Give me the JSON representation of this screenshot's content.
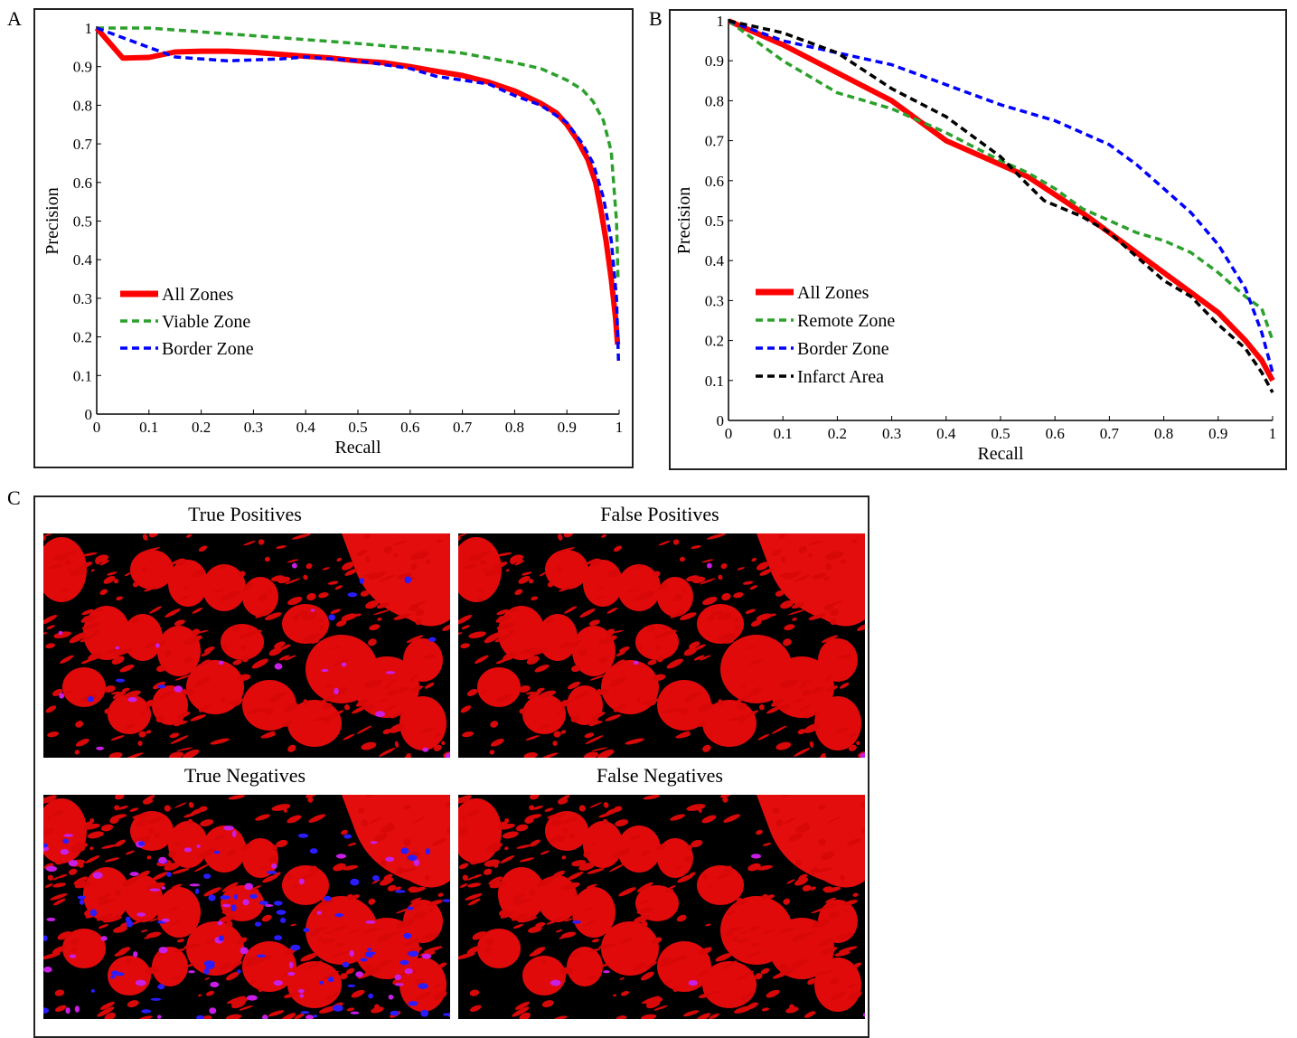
{
  "panels": {
    "a_label": "A",
    "b_label": "B",
    "c_label": "C"
  },
  "chart_data": [
    {
      "type": "line",
      "panel": "A",
      "xlabel": "Recall",
      "ylabel": "Precision",
      "xlim": [
        0,
        1
      ],
      "ylim": [
        0,
        1
      ],
      "xticks": [
        "0",
        "0.1",
        "0.2",
        "0.3",
        "0.4",
        "0.5",
        "0.6",
        "0.7",
        "0.8",
        "0.9",
        "1"
      ],
      "yticks": [
        "0",
        "0.1",
        "0.2",
        "0.3",
        "0.4",
        "0.5",
        "0.6",
        "0.7",
        "0.8",
        "0.9",
        "1"
      ],
      "legend_position": "bottom-left",
      "series": [
        {
          "name": "All Zones",
          "color": "#ff0000",
          "style": "solid",
          "points": [
            [
              0,
              1.0
            ],
            [
              0.05,
              0.922
            ],
            [
              0.1,
              0.924
            ],
            [
              0.15,
              0.938
            ],
            [
              0.2,
              0.94
            ],
            [
              0.25,
              0.94
            ],
            [
              0.3,
              0.937
            ],
            [
              0.35,
              0.932
            ],
            [
              0.4,
              0.927
            ],
            [
              0.45,
              0.922
            ],
            [
              0.5,
              0.915
            ],
            [
              0.55,
              0.91
            ],
            [
              0.6,
              0.9
            ],
            [
              0.65,
              0.888
            ],
            [
              0.7,
              0.877
            ],
            [
              0.75,
              0.86
            ],
            [
              0.8,
              0.837
            ],
            [
              0.85,
              0.805
            ],
            [
              0.88,
              0.78
            ],
            [
              0.9,
              0.75
            ],
            [
              0.92,
              0.71
            ],
            [
              0.94,
              0.66
            ],
            [
              0.955,
              0.6
            ],
            [
              0.965,
              0.53
            ],
            [
              0.975,
              0.45
            ],
            [
              0.985,
              0.35
            ],
            [
              0.993,
              0.25
            ],
            [
              0.997,
              0.18
            ]
          ]
        },
        {
          "name": "Viable Zone",
          "color": "#2ca02c",
          "style": "dashed",
          "points": [
            [
              0,
              1.0
            ],
            [
              0.1,
              1.0
            ],
            [
              0.2,
              0.99
            ],
            [
              0.3,
              0.98
            ],
            [
              0.4,
              0.97
            ],
            [
              0.5,
              0.96
            ],
            [
              0.6,
              0.948
            ],
            [
              0.7,
              0.935
            ],
            [
              0.8,
              0.91
            ],
            [
              0.85,
              0.895
            ],
            [
              0.9,
              0.865
            ],
            [
              0.93,
              0.84
            ],
            [
              0.95,
              0.81
            ],
            [
              0.97,
              0.76
            ],
            [
              0.985,
              0.68
            ],
            [
              0.995,
              0.5
            ],
            [
              0.998,
              0.35
            ]
          ]
        },
        {
          "name": "Border Zone",
          "color": "#0000ff",
          "style": "dashed",
          "points": [
            [
              0,
              1.0
            ],
            [
              0.1,
              0.95
            ],
            [
              0.15,
              0.925
            ],
            [
              0.25,
              0.915
            ],
            [
              0.35,
              0.92
            ],
            [
              0.4,
              0.925
            ],
            [
              0.5,
              0.915
            ],
            [
              0.6,
              0.895
            ],
            [
              0.65,
              0.875
            ],
            [
              0.7,
              0.865
            ],
            [
              0.75,
              0.855
            ],
            [
              0.8,
              0.825
            ],
            [
              0.85,
              0.8
            ],
            [
              0.9,
              0.755
            ],
            [
              0.93,
              0.7
            ],
            [
              0.95,
              0.65
            ],
            [
              0.97,
              0.56
            ],
            [
              0.985,
              0.45
            ],
            [
              0.995,
              0.3
            ],
            [
              0.999,
              0.13
            ]
          ]
        }
      ]
    },
    {
      "type": "line",
      "panel": "B",
      "xlabel": "Recall",
      "ylabel": "Precision",
      "xlim": [
        0,
        1
      ],
      "ylim": [
        0,
        1
      ],
      "xticks": [
        "0",
        "0.1",
        "0.2",
        "0.3",
        "0.4",
        "0.5",
        "0.6",
        "0.7",
        "0.8",
        "0.9",
        "1"
      ],
      "yticks": [
        "0",
        "0.1",
        "0.2",
        "0.3",
        "0.4",
        "0.5",
        "0.6",
        "0.7",
        "0.8",
        "0.9",
        "1"
      ],
      "legend_position": "bottom-left",
      "series": [
        {
          "name": "All Zones",
          "color": "#ff0000",
          "style": "solid",
          "points": [
            [
              0,
              1.0
            ],
            [
              0.1,
              0.94
            ],
            [
              0.2,
              0.87
            ],
            [
              0.3,
              0.8
            ],
            [
              0.4,
              0.7
            ],
            [
              0.5,
              0.64
            ],
            [
              0.55,
              0.61
            ],
            [
              0.6,
              0.565
            ],
            [
              0.65,
              0.52
            ],
            [
              0.7,
              0.47
            ],
            [
              0.75,
              0.42
            ],
            [
              0.8,
              0.37
            ],
            [
              0.85,
              0.32
            ],
            [
              0.9,
              0.27
            ],
            [
              0.95,
              0.2
            ],
            [
              0.98,
              0.15
            ],
            [
              1.0,
              0.1
            ]
          ]
        },
        {
          "name": "Remote Zone",
          "color": "#2ca02c",
          "style": "dashed",
          "points": [
            [
              0,
              1.0
            ],
            [
              0.1,
              0.9
            ],
            [
              0.2,
              0.82
            ],
            [
              0.3,
              0.78
            ],
            [
              0.4,
              0.72
            ],
            [
              0.5,
              0.65
            ],
            [
              0.55,
              0.62
            ],
            [
              0.6,
              0.58
            ],
            [
              0.65,
              0.53
            ],
            [
              0.7,
              0.5
            ],
            [
              0.75,
              0.47
            ],
            [
              0.8,
              0.45
            ],
            [
              0.85,
              0.42
            ],
            [
              0.9,
              0.37
            ],
            [
              0.95,
              0.31
            ],
            [
              0.98,
              0.28
            ],
            [
              1.0,
              0.2
            ]
          ]
        },
        {
          "name": "Border Zone",
          "color": "#0000ff",
          "style": "dashed",
          "points": [
            [
              0,
              1.0
            ],
            [
              0.1,
              0.95
            ],
            [
              0.2,
              0.92
            ],
            [
              0.3,
              0.89
            ],
            [
              0.4,
              0.84
            ],
            [
              0.5,
              0.79
            ],
            [
              0.6,
              0.75
            ],
            [
              0.7,
              0.69
            ],
            [
              0.75,
              0.64
            ],
            [
              0.8,
              0.58
            ],
            [
              0.85,
              0.52
            ],
            [
              0.9,
              0.44
            ],
            [
              0.95,
              0.33
            ],
            [
              0.98,
              0.22
            ],
            [
              1.0,
              0.12
            ]
          ]
        },
        {
          "name": "Infarct Area",
          "color": "#000000",
          "style": "dashed",
          "points": [
            [
              0,
              1.0
            ],
            [
              0.1,
              0.97
            ],
            [
              0.2,
              0.92
            ],
            [
              0.3,
              0.83
            ],
            [
              0.4,
              0.76
            ],
            [
              0.5,
              0.66
            ],
            [
              0.55,
              0.59
            ],
            [
              0.58,
              0.55
            ],
            [
              0.65,
              0.51
            ],
            [
              0.7,
              0.47
            ],
            [
              0.75,
              0.41
            ],
            [
              0.8,
              0.35
            ],
            [
              0.85,
              0.31
            ],
            [
              0.9,
              0.24
            ],
            [
              0.95,
              0.18
            ],
            [
              0.98,
              0.12
            ],
            [
              1.0,
              0.07
            ]
          ]
        }
      ]
    }
  ],
  "images": {
    "titles": [
      "True Positives",
      "False Positives",
      "True Negatives",
      "False Negatives"
    ]
  }
}
